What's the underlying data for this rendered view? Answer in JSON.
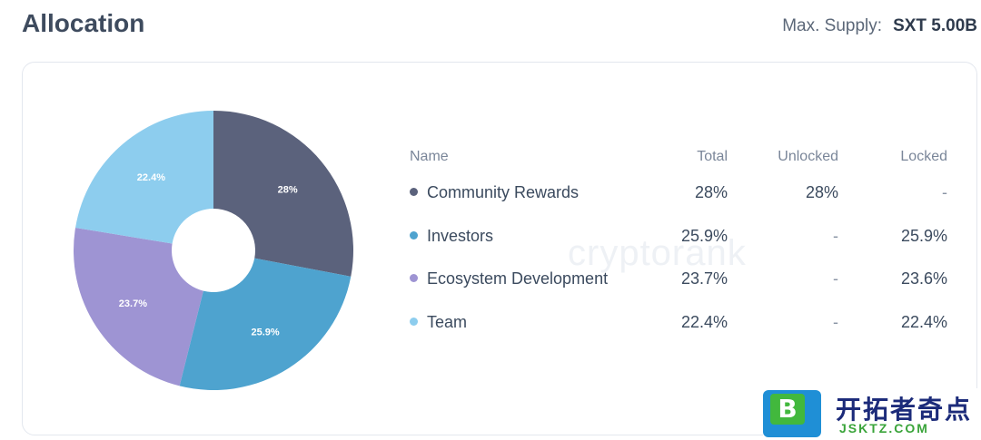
{
  "header": {
    "title": "Allocation",
    "supply_label": "Max. Supply:",
    "supply_value": "SXT 5.00B"
  },
  "watermark": "cryptorank",
  "table": {
    "headers": {
      "name": "Name",
      "total": "Total",
      "unlocked": "Unlocked",
      "locked": "Locked"
    },
    "rows": [
      {
        "name": "Community Rewards",
        "total": "28%",
        "unlocked": "28%",
        "locked": "-",
        "color": "#5b627c"
      },
      {
        "name": "Investors",
        "total": "25.9%",
        "unlocked": "-",
        "locked": "25.9%",
        "color": "#4ea3cf"
      },
      {
        "name": "Ecosystem Development",
        "total": "23.7%",
        "unlocked": "-",
        "locked": "23.6%",
        "color": "#9e94d3"
      },
      {
        "name": "Team",
        "total": "22.4%",
        "unlocked": "-",
        "locked": "22.4%",
        "color": "#8dcdee"
      }
    ]
  },
  "chart_data": {
    "type": "pie",
    "donut": true,
    "categories": [
      "Community Rewards",
      "Investors",
      "Ecosystem Development",
      "Team"
    ],
    "values": [
      28,
      25.9,
      23.7,
      22.4
    ],
    "labels": [
      "28%",
      "25.9%",
      "23.7%",
      "22.4%"
    ],
    "colors": [
      "#5b627c",
      "#4ea3cf",
      "#9e94d3",
      "#8dcdee"
    ],
    "start": "12 o'clock, clockwise"
  },
  "logo": {
    "badge_letter": "B",
    "text_cn": "开拓者奇点",
    "text_en": "JSKTZ.COM"
  }
}
